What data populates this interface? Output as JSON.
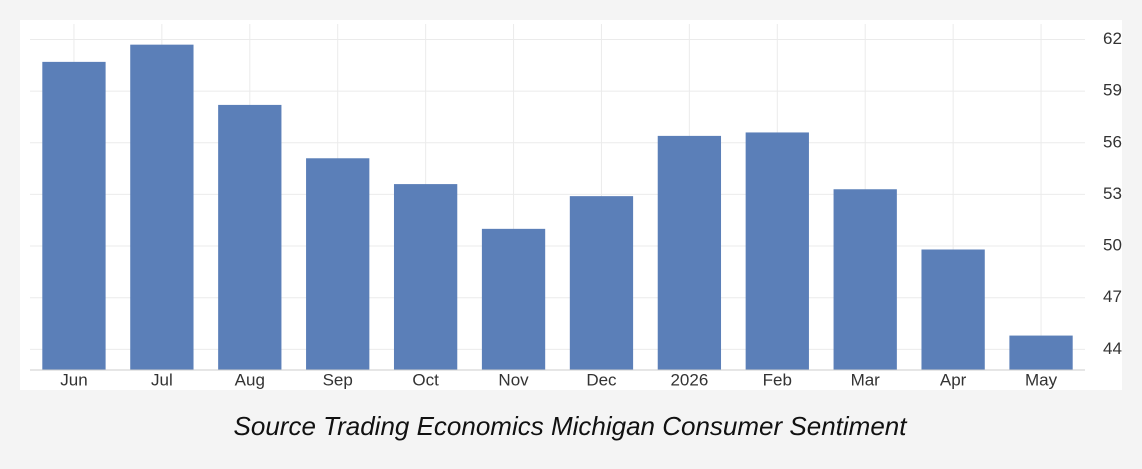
{
  "chart_data": {
    "type": "bar",
    "caption": "Source Trading Economics Michigan Consumer Sentiment",
    "categories": [
      "Jun",
      "Jul",
      "Aug",
      "Sep",
      "Oct",
      "Nov",
      "Dec",
      "2026",
      "Feb",
      "Mar",
      "Apr",
      "May"
    ],
    "values": [
      60.7,
      61.7,
      58.2,
      55.1,
      53.6,
      51.0,
      52.9,
      56.4,
      56.6,
      53.3,
      49.8,
      44.8
    ],
    "color": "#5b7fb8",
    "ylim": [
      42.8,
      62.9
    ],
    "yticks": [
      44,
      47,
      50,
      53,
      56,
      59,
      62
    ],
    "y_axis_side": "right",
    "grid": true
  }
}
